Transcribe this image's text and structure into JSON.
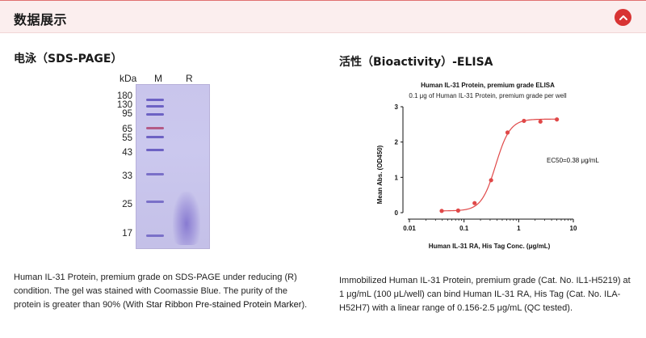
{
  "header": {
    "title": "数据展示"
  },
  "left": {
    "section_title": "电泳（SDS-PAGE）",
    "gel": {
      "col_labels": {
        "kda": "kDa",
        "m": "M",
        "r": "R"
      },
      "markers": [
        "180",
        "130",
        "95",
        "65",
        "55",
        "43",
        "33",
        "25",
        "17"
      ]
    },
    "caption": {
      "text": "Human IL-31 Protein, premium grade on SDS-PAGE under reducing (R) condition. The gel was stained with Coomassie Blue. The purity of the protein is greater than 90% (With ",
      "link": "Star Ribbon Pre-stained Protein Marker",
      "end": ")."
    }
  },
  "right": {
    "section_title": "活性（Bioactivity）-ELISA",
    "caption": "Immobilized Human IL-31 Protein, premium grade (Cat. No. IL1-H5219) at 1 μg/mL (100 μL/well) can bind Human IL-31 RA, His Tag (Cat. No. ILA-H52H7) with a linear range of 0.156-2.5 μg/mL (QC tested)."
  },
  "chart_data": {
    "type": "scatter",
    "title": "Human IL-31 Protein, premium grade ELISA",
    "subtitle": "0.1 μg of Human IL-31 Protein, premium grade per well",
    "xlabel": "Human IL-31 RA, His Tag Conc. (μg/mL)",
    "ylabel": "Mean Abs. (OD450)",
    "x_scale": "log",
    "x_ticks": [
      "0.01",
      "0.1",
      "1",
      "10"
    ],
    "y_ticks": [
      "0",
      "1",
      "2",
      "3"
    ],
    "xlim": [
      0.01,
      10
    ],
    "ylim": [
      0,
      3
    ],
    "annotation": "EC50=0.38 μg/mL",
    "color": "#e04848",
    "series": [
      {
        "x": [
          0.039,
          0.078,
          0.156,
          0.3125,
          0.625,
          1.25,
          2.5,
          5.0
        ],
        "y": [
          0.05,
          0.06,
          0.27,
          0.92,
          2.27,
          2.6,
          2.58,
          2.64
        ]
      }
    ],
    "fit": {
      "bottom": 0.05,
      "top": 2.65,
      "ec50": 0.38,
      "hill": 3.3
    }
  }
}
